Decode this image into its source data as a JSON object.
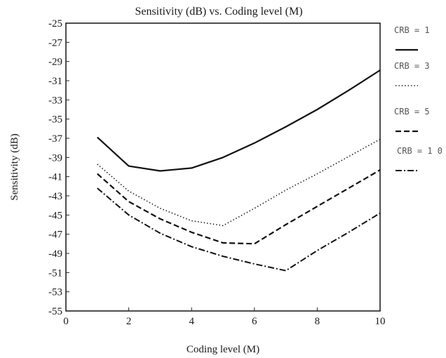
{
  "chart_data": {
    "type": "line",
    "title": "Sensitivity (dB) vs. Coding level (M)",
    "xlabel": "Coding level (M)",
    "ylabel": "Sensitivity (dB)",
    "xlim": [
      0,
      10
    ],
    "ylim": [
      -55,
      -25
    ],
    "xticks": [
      0,
      2,
      4,
      6,
      8,
      10
    ],
    "yticks": [
      -25,
      -27,
      -29,
      -31,
      -33,
      -35,
      -37,
      -39,
      -41,
      -43,
      -45,
      -47,
      -49,
      -51,
      -53,
      -55
    ],
    "grid": false,
    "legend_position": "right",
    "series": [
      {
        "name": "CRB = 1",
        "style": "solid",
        "color": "#111111",
        "x": [
          1,
          2,
          3,
          4,
          5,
          6,
          7,
          8,
          9,
          10
        ],
        "y": [
          -36.9,
          -39.9,
          -40.4,
          -40.1,
          -39.0,
          -37.5,
          -35.8,
          -34.0,
          -32.0,
          -29.9
        ]
      },
      {
        "name": "CRB = 3",
        "style": "dotted",
        "color": "#111111",
        "x": [
          1,
          2,
          3,
          4,
          5,
          6,
          7,
          8,
          9,
          10
        ],
        "y": [
          -39.7,
          -42.5,
          -44.3,
          -45.6,
          -46.1,
          -44.3,
          -42.4,
          -40.7,
          -38.9,
          -37.1
        ]
      },
      {
        "name": "CRB = 5",
        "style": "dashed",
        "color": "#111111",
        "x": [
          1,
          2,
          3,
          4,
          5,
          6,
          7,
          8,
          9,
          10
        ],
        "y": [
          -40.7,
          -43.6,
          -45.4,
          -46.8,
          -47.9,
          -48.0,
          -46.0,
          -44.1,
          -42.2,
          -40.3
        ]
      },
      {
        "name": "CRB = 1 0",
        "style": "dashdot",
        "color": "#111111",
        "x": [
          1,
          2,
          3,
          4,
          5,
          6,
          7,
          8,
          9,
          10
        ],
        "y": [
          -42.2,
          -45.0,
          -46.9,
          -48.3,
          -49.3,
          -50.1,
          -50.8,
          -48.7,
          -46.8,
          -44.8
        ]
      }
    ]
  }
}
